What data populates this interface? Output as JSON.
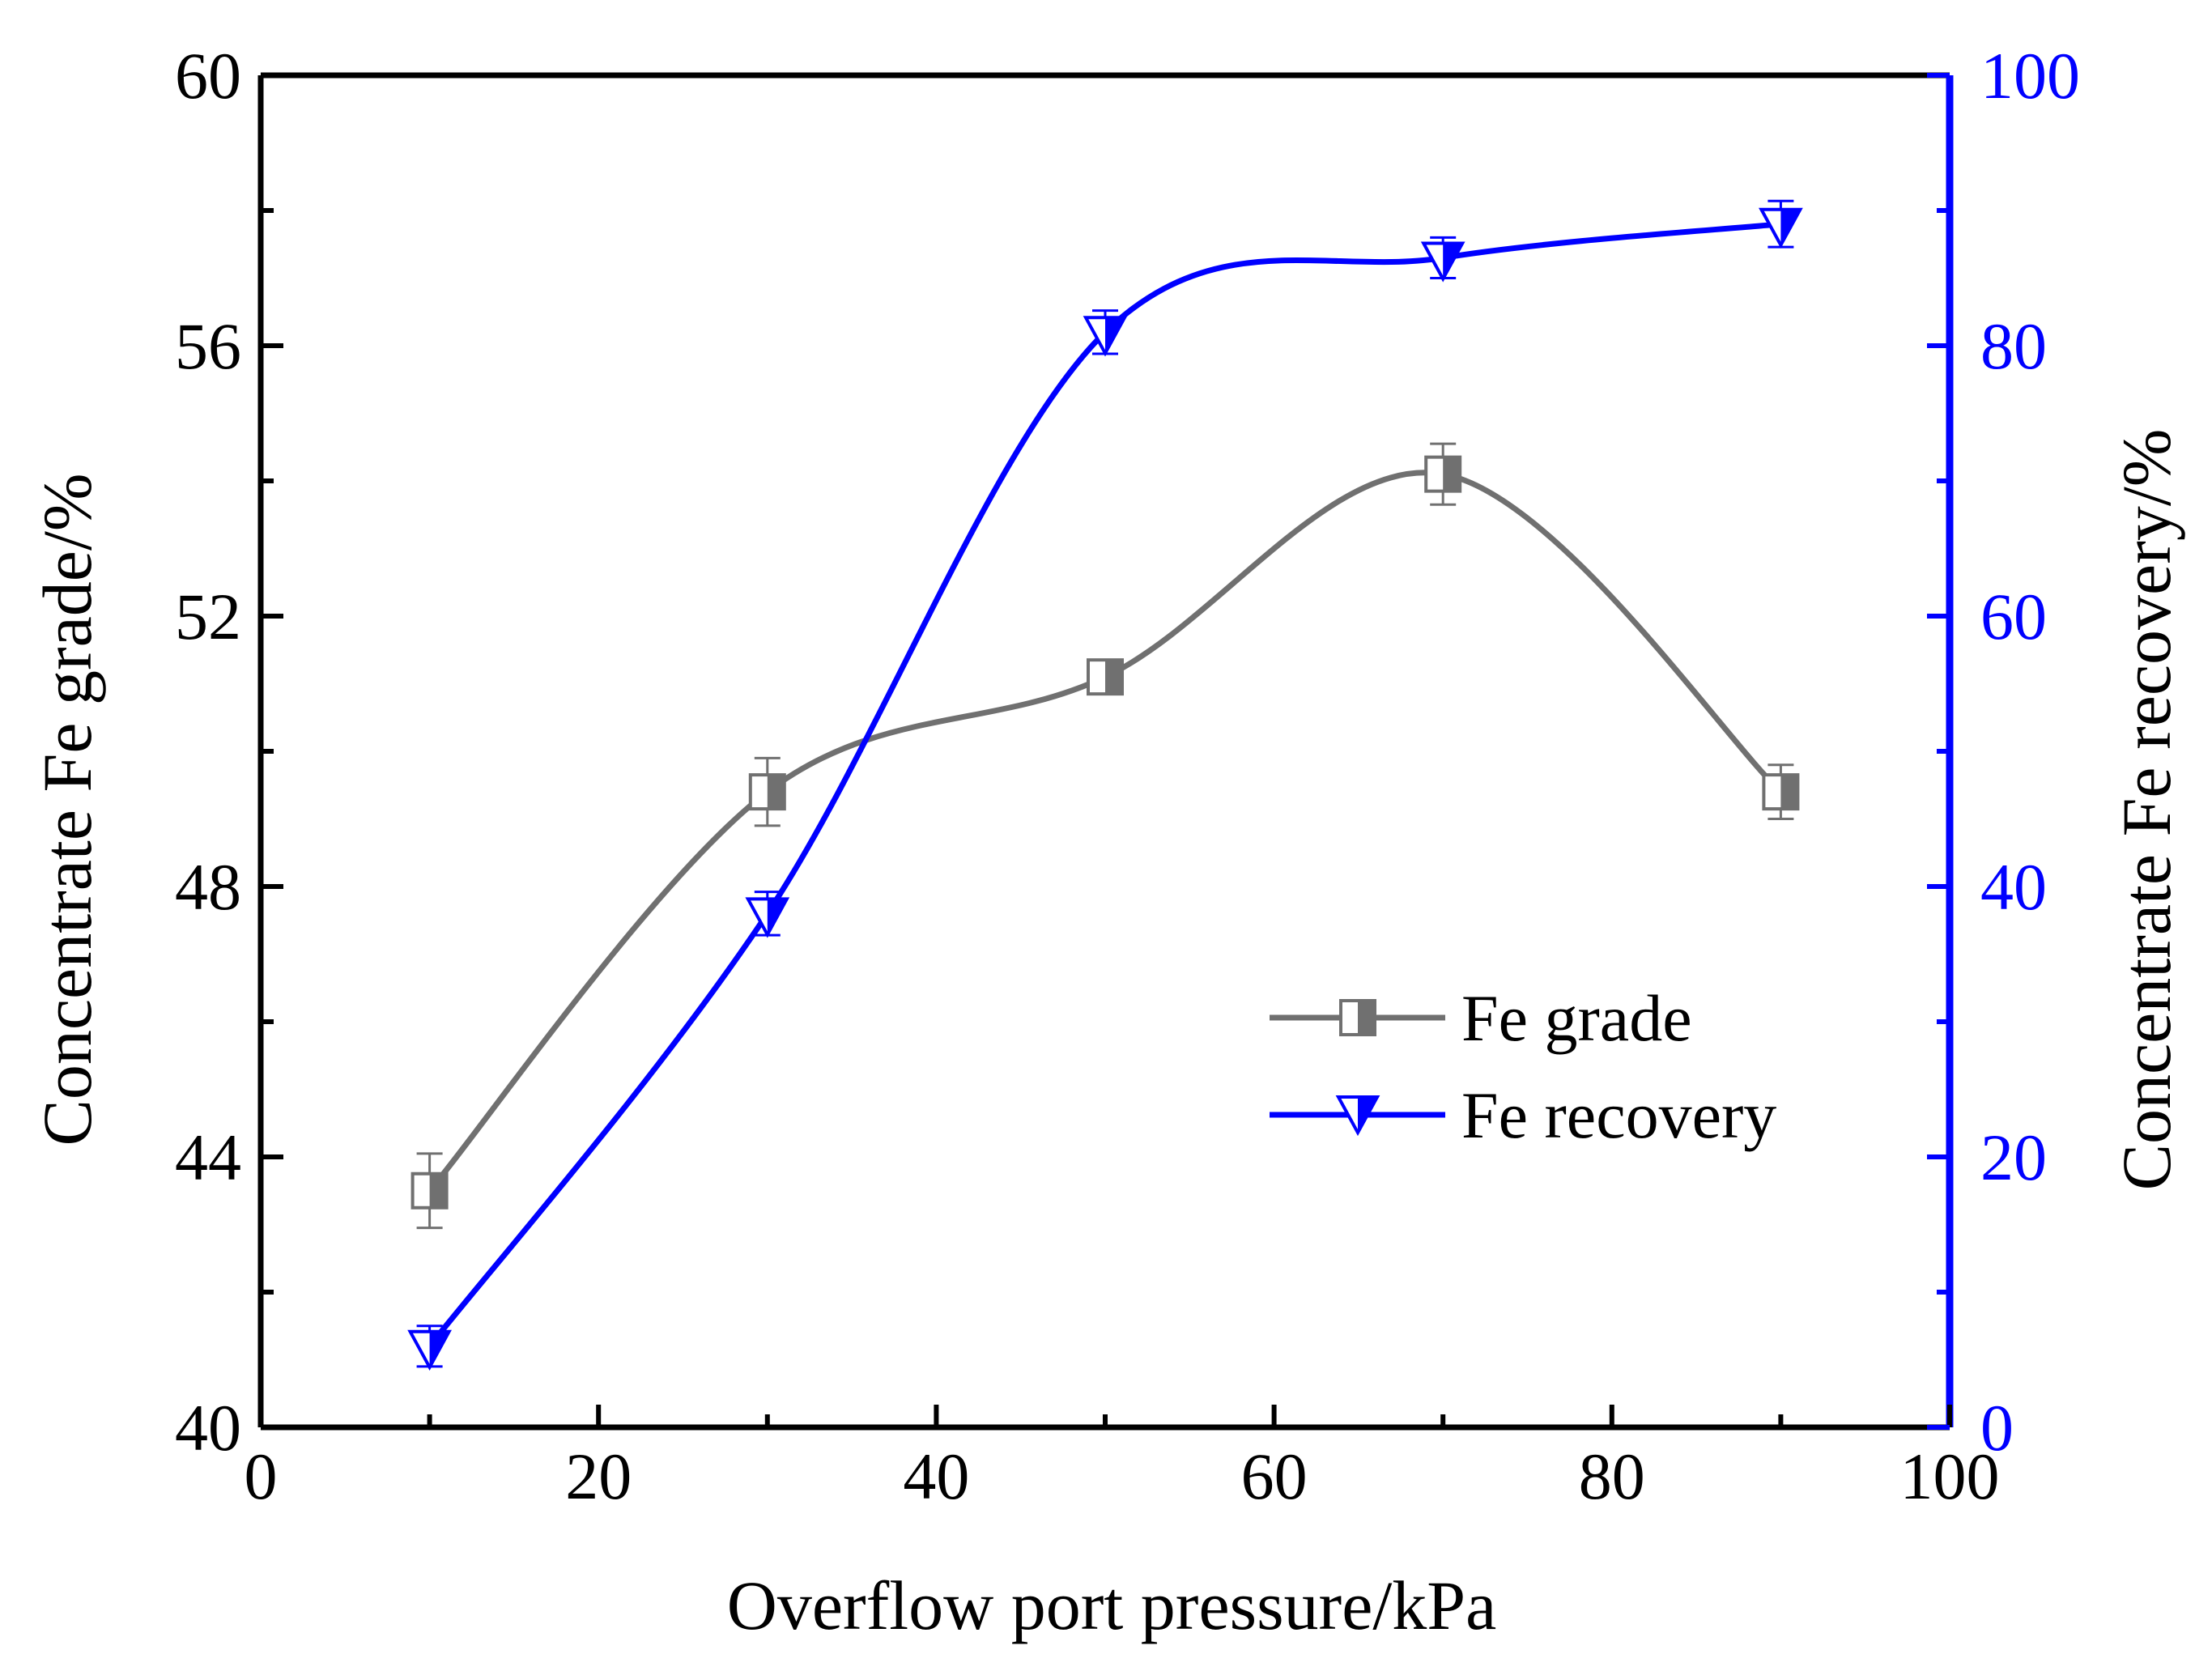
{
  "chart_data": {
    "type": "line",
    "xlabel": "Overflow port pressure/kPa",
    "ylabel_left": "Concentrate Fe grade/%",
    "ylabel_right": "Concentrate Fe recovery/%",
    "xlim": [
      0,
      100
    ],
    "ylim_left": [
      40,
      60
    ],
    "ylim_right": [
      0,
      100
    ],
    "x_ticks": [
      0,
      20,
      40,
      60,
      80,
      100
    ],
    "y_left_ticks": [
      40,
      44,
      48,
      52,
      56,
      60
    ],
    "y_right_ticks": [
      0,
      20,
      40,
      60,
      80,
      100
    ],
    "x_tick_labels": [
      "0",
      "20",
      "40",
      "60",
      "80",
      "100"
    ],
    "y_left_tick_labels": [
      "40",
      "44",
      "48",
      "52",
      "56",
      "60"
    ],
    "y_right_tick_labels": [
      "0",
      "20",
      "40",
      "60",
      "80",
      "100"
    ],
    "grid": false,
    "legend_position": "center-right",
    "series": [
      {
        "name": "Fe grade",
        "axis": "left",
        "marker": "half-filled-square",
        "color": "#707070",
        "x": [
          10,
          30,
          50,
          70,
          90
        ],
        "values": [
          43.5,
          49.4,
          51.1,
          54.1,
          49.4
        ],
        "errors": [
          0.55,
          0.5,
          0.2,
          0.45,
          0.4
        ]
      },
      {
        "name": "Fe recovery",
        "axis": "right",
        "marker": "half-filled-down-triangle",
        "color": "#0000ff",
        "x": [
          10,
          30,
          50,
          70,
          90
        ],
        "values": [
          6,
          38,
          81,
          86.5,
          89
        ],
        "errors": [
          1.5,
          1.6,
          1.6,
          1.5,
          1.7
        ]
      }
    ]
  },
  "colors": {
    "left_axis": "#000000",
    "right_axis": "#0000ff"
  }
}
